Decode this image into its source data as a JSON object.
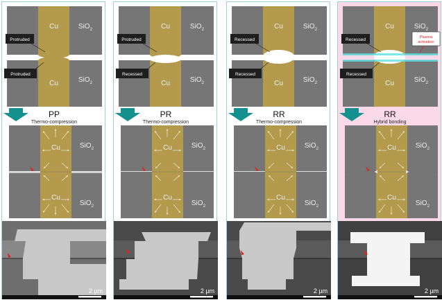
{
  "colors": {
    "sio2": "#767676",
    "cu": "#b39a4c",
    "arrow": "#14908f",
    "label_bg": "#1e1e1e",
    "hybrid_bg": "#fbd9e8",
    "panel_border": "#9fcfcf",
    "plasma": "#5fe0e0",
    "marker": "#e02020"
  },
  "materials": {
    "cu": "Cu",
    "sio2": "SiO",
    "sio2_sub": "2"
  },
  "scale_bar": "2 µm",
  "panels": [
    {
      "title": "PP",
      "process": "Thermo-compression",
      "upper": "Protruded",
      "lower": "Protruded",
      "hybrid": false
    },
    {
      "title": "PR",
      "process": "Thermo-compression",
      "upper": "Protruded",
      "lower": "Recessed",
      "hybrid": false
    },
    {
      "title": "RR",
      "process": "Thermo-compression",
      "upper": "Recessed",
      "lower": "Recessed",
      "hybrid": false
    },
    {
      "title": "RR",
      "process": "Hybrid bonding",
      "upper": "Recessed",
      "lower": "Recessed",
      "hybrid": true,
      "plasma_label": [
        "Plasma",
        "activation"
      ]
    }
  ]
}
